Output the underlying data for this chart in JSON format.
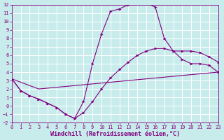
{
  "background_color": "#c8ecec",
  "grid_color": "#ffffff",
  "line_color": "#800080",
  "marker_color": "#800080",
  "xlabel": "Windchill (Refroidissement éolien,°C)",
  "xlim": [
    0,
    23
  ],
  "ylim": [
    -2,
    12
  ],
  "xticks": [
    0,
    1,
    2,
    3,
    4,
    5,
    6,
    7,
    8,
    9,
    10,
    11,
    12,
    13,
    14,
    15,
    16,
    17,
    18,
    19,
    20,
    21,
    22,
    23
  ],
  "yticks": [
    -2,
    -1,
    0,
    1,
    2,
    3,
    4,
    5,
    6,
    7,
    8,
    9,
    10,
    11,
    12
  ],
  "curve1_x": [
    0,
    3,
    23
  ],
  "curve1_y": [
    3.2,
    2.0,
    4.0
  ],
  "curve2_x": [
    0,
    1,
    2,
    3,
    4,
    5,
    6,
    7,
    8,
    9,
    10,
    11,
    12,
    13,
    14,
    15,
    16,
    17,
    18,
    19,
    20,
    21,
    22,
    23
  ],
  "curve2_y": [
    3.2,
    1.8,
    1.2,
    0.8,
    0.3,
    -0.2,
    -1.0,
    -1.5,
    -0.8,
    0.5,
    2.0,
    3.3,
    4.3,
    5.2,
    6.0,
    6.5,
    6.8,
    6.8,
    6.5,
    6.5,
    6.5,
    6.3,
    5.8,
    5.2
  ],
  "curve3_x": [
    0,
    1,
    2,
    3,
    4,
    5,
    6,
    7,
    8,
    9,
    10,
    11,
    12,
    13,
    14,
    15,
    16,
    17,
    18,
    19,
    20,
    21,
    22,
    23
  ],
  "curve3_y": [
    3.2,
    1.8,
    1.2,
    0.8,
    0.3,
    -0.2,
    -1.0,
    -1.5,
    0.5,
    5.0,
    8.5,
    11.2,
    11.5,
    12.0,
    12.2,
    12.2,
    11.7,
    8.0,
    6.5,
    5.5,
    5.0,
    5.0,
    4.8,
    4.0
  ],
  "tick_fontsize": 5.0,
  "xlabel_fontsize": 6.0
}
